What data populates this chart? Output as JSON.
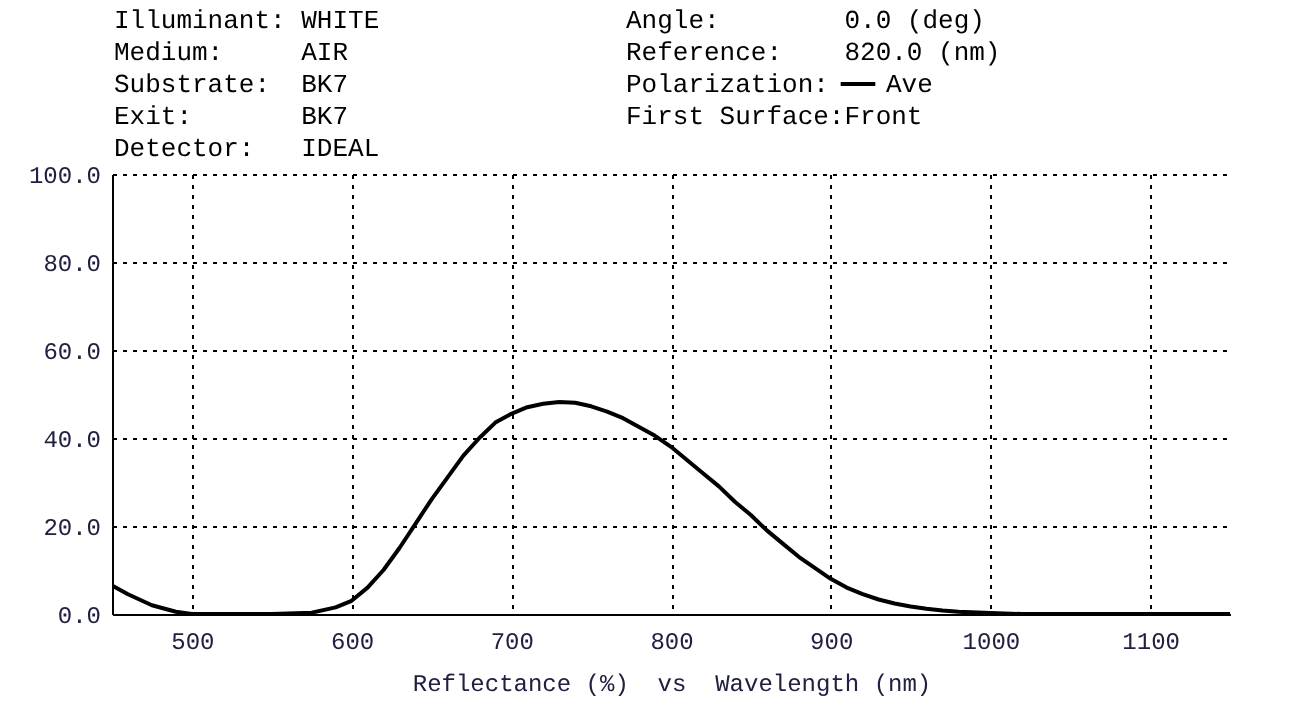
{
  "chart_data": {
    "type": "line",
    "xlabel": "Reflectance (%)  vs  Wavelength (nm)",
    "annotations": [
      "Illuminant: WHITE",
      "Medium:     AIR",
      "Substrate:  BK7",
      "Exit:       BK7",
      "Detector:   IDEAL",
      "Angle:        0.0 (deg)",
      "Reference:    820.0 (nm)",
      "Polarization:",
      "First Surface:Front"
    ],
    "x": [
      450,
      460,
      475,
      490,
      500,
      550,
      575,
      590,
      600,
      610,
      620,
      630,
      640,
      650,
      660,
      670,
      680,
      690,
      700,
      710,
      720,
      730,
      740,
      750,
      760,
      770,
      780,
      790,
      800,
      810,
      820,
      830,
      840,
      850,
      860,
      870,
      880,
      890,
      900,
      910,
      920,
      930,
      940,
      950,
      960,
      970,
      980,
      1000,
      1020,
      1150
    ],
    "series": [
      {
        "name": "Ave",
        "color": "#000000",
        "values": [
          6.5,
          4.5,
          2,
          0.5,
          0,
          0,
          0.3,
          1.5,
          3,
          6,
          10,
          15,
          20.5,
          26,
          31,
          36,
          40,
          43.5,
          45.5,
          47,
          47.8,
          48.2,
          48,
          47.2,
          46,
          44.5,
          42.5,
          40.5,
          38,
          35,
          32,
          29,
          25.5,
          22.5,
          19,
          16,
          13,
          10.5,
          8,
          6,
          4.5,
          3.3,
          2.4,
          1.7,
          1.2,
          0.8,
          0.5,
          0.2,
          0,
          0
        ]
      }
    ],
    "xlim": [
      450,
      1150
    ],
    "xticks": [
      500,
      600,
      700,
      800,
      900,
      1000,
      1100
    ],
    "ylim": [
      0,
      100
    ],
    "yticks": [
      {
        "value": 0,
        "label": "0.0"
      },
      {
        "value": 20,
        "label": "20.0"
      },
      {
        "value": 40,
        "label": "40.0"
      },
      {
        "value": 60,
        "label": "60.0"
      },
      {
        "value": 80,
        "label": "80.0"
      },
      {
        "value": 100,
        "label": "100.0"
      }
    ],
    "grid": true,
    "legend": "top right",
    "line_style": "solid",
    "marker": "none"
  }
}
